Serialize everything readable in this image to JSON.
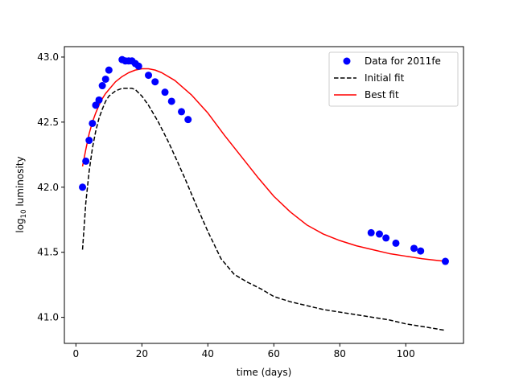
{
  "chart_data": {
    "type": "line",
    "title": "",
    "xlabel": "time (days)",
    "ylabel_prefix": "log",
    "ylabel_sub": "10",
    "ylabel_suffix": " luminosity",
    "xlim": [
      -3.5,
      117.5
    ],
    "ylim": [
      40.8,
      43.08
    ],
    "xticks": [
      0,
      20,
      40,
      60,
      80,
      100
    ],
    "yticks": [
      41.0,
      41.5,
      42.0,
      42.5,
      43.0
    ],
    "xtick_labels": [
      "0",
      "20",
      "40",
      "60",
      "80",
      "100"
    ],
    "ytick_labels": [
      "41.0",
      "41.5",
      "42.0",
      "42.5",
      "43.0"
    ],
    "grid": false,
    "legend_position": "top-right",
    "colors": {
      "data": "#0000ff",
      "initial_fit": "#000000",
      "best_fit": "#ff0000"
    },
    "series": [
      {
        "name": "Data for 2011fe",
        "kind": "scatter",
        "x": [
          2,
          3,
          4,
          5,
          6,
          7,
          8,
          9,
          10,
          14,
          15,
          16,
          17,
          18,
          19,
          22,
          24,
          27,
          29,
          32,
          34,
          89.5,
          92,
          94,
          97,
          102.5,
          104.5,
          112
        ],
        "y": [
          42.0,
          42.2,
          42.36,
          42.49,
          42.63,
          42.67,
          42.78,
          42.83,
          42.9,
          42.98,
          42.97,
          42.97,
          42.97,
          42.95,
          42.93,
          42.86,
          42.81,
          42.73,
          42.66,
          42.58,
          42.52,
          41.65,
          41.64,
          41.61,
          41.57,
          41.53,
          41.51,
          41.43
        ]
      },
      {
        "name": "Initial fit",
        "kind": "line",
        "dash": "dashed",
        "x": [
          2,
          3,
          4,
          5,
          6,
          7,
          8,
          9,
          10,
          12,
          14,
          16,
          17,
          18,
          20,
          22,
          25,
          28,
          30,
          33,
          36,
          40,
          44,
          48,
          52,
          56,
          60,
          65,
          70,
          75,
          80,
          85,
          90,
          95,
          100,
          105,
          112
        ],
        "y": [
          41.52,
          41.88,
          42.12,
          42.3,
          42.43,
          42.53,
          42.6,
          42.66,
          42.7,
          42.74,
          42.76,
          42.76,
          42.76,
          42.75,
          42.7,
          42.63,
          42.5,
          42.35,
          42.24,
          42.07,
          41.89,
          41.66,
          41.45,
          41.33,
          41.27,
          41.22,
          41.16,
          41.12,
          41.09,
          41.06,
          41.04,
          41.02,
          41.0,
          40.98,
          40.95,
          40.93,
          40.9
        ]
      },
      {
        "name": "Best fit",
        "kind": "line",
        "dash": "solid",
        "x": [
          2,
          3,
          4,
          5,
          6,
          7,
          8,
          9,
          10,
          12,
          14,
          16,
          18,
          20,
          22,
          24,
          26,
          30,
          35,
          40,
          45,
          50,
          55,
          60,
          65,
          70,
          75,
          80,
          85,
          90,
          95,
          100,
          105,
          112
        ],
        "y": [
          42.16,
          42.29,
          42.41,
          42.5,
          42.57,
          42.63,
          42.68,
          42.72,
          42.75,
          42.81,
          42.85,
          42.88,
          42.9,
          42.91,
          42.91,
          42.9,
          42.88,
          42.82,
          42.71,
          42.57,
          42.4,
          42.24,
          42.08,
          41.93,
          41.81,
          41.71,
          41.64,
          41.59,
          41.55,
          41.52,
          41.49,
          41.47,
          41.45,
          41.43
        ]
      }
    ]
  }
}
